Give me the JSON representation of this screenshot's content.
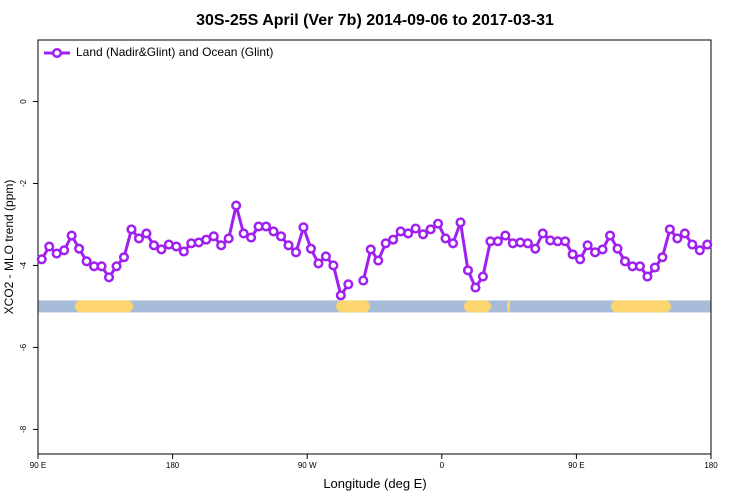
{
  "chart_data": {
    "type": "line",
    "title": "30S-25S April (Ver 7b)   2014-09-06 to 2017-03-31",
    "x_label": "Longitude (deg E)",
    "y_label": "XCO2 - MLO trend (ppm)",
    "xlim": [
      90,
      540
    ],
    "ylim": [
      -8.6,
      1.5
    ],
    "xticks": [
      {
        "value": 90,
        "label": "90 E"
      },
      180,
      {
        "value": 270,
        "label": "90 W"
      },
      {
        "value": 360,
        "label": "0"
      },
      {
        "value": 450,
        "label": "90 E"
      },
      {
        "value": 540,
        "label": "180"
      }
    ],
    "yticks": [
      0,
      -2,
      -4,
      -6,
      -8
    ],
    "legend": "top-left",
    "series": [
      {
        "name": "Land (Nadir&Glint) and Ocean (Glint)",
        "color": "#a020f0",
        "x": [
          92.5,
          97.5,
          102.5,
          107.5,
          112.5,
          117.5,
          122.5,
          127.5,
          132.5,
          137.5,
          142.5,
          147.5,
          152.5,
          157.5,
          162.5,
          167.5,
          172.5,
          177.5,
          182.5,
          187.5,
          192.5,
          197.5,
          202.5,
          207.5,
          212.5,
          217.5,
          222.5,
          227.5,
          232.5,
          237.5,
          242.5,
          247.5,
          252.5,
          257.5,
          262.5,
          267.5,
          272.5,
          277.5,
          282.5,
          287.5,
          292.5,
          297.5,
          302.5,
          307.5,
          312.5,
          317.5,
          322.5,
          327.5,
          332.5,
          337.5,
          342.5,
          347.5,
          352.5,
          357.5,
          362.5,
          367.5,
          372.5,
          377.5,
          382.5,
          387.5,
          392.5,
          397.5,
          402.5,
          407.5,
          412.5,
          417.5,
          422.5,
          427.5,
          432.5,
          437.5,
          442.5,
          447.5,
          452.5,
          457.5,
          462.5,
          467.5,
          472.5,
          477.5,
          482.5,
          487.5,
          492.5,
          497.5,
          502.5,
          507.5,
          512.5,
          517.5,
          522.5,
          527.5,
          532.5,
          537.5
        ],
        "values": [
          -3.85,
          -3.54,
          -3.71,
          -3.63,
          -3.27,
          -3.59,
          -3.9,
          -4.02,
          -4.02,
          -4.29,
          -4.02,
          -3.8,
          -3.12,
          -3.34,
          -3.22,
          -3.51,
          -3.61,
          -3.49,
          -3.54,
          -3.66,
          -3.46,
          -3.44,
          -3.37,
          -3.29,
          -3.51,
          -3.34,
          -2.54,
          -3.22,
          -3.32,
          -3.05,
          -3.05,
          -3.17,
          -3.29,
          -3.51,
          -3.68,
          -3.07,
          -3.59,
          -3.95,
          -3.78,
          -4.0,
          -4.73,
          -4.46,
          null,
          -4.37,
          -3.61,
          -3.88,
          -3.46,
          -3.37,
          -3.17,
          -3.22,
          -3.1,
          -3.24,
          -3.12,
          -2.98,
          -3.34,
          -3.46,
          -2.95,
          -4.12,
          -4.54,
          -4.27,
          -3.41,
          -3.41,
          -3.27,
          -3.46,
          -3.44,
          -3.46,
          -3.59,
          -3.22,
          -3.39,
          -3.41,
          -3.41,
          -3.73,
          -3.85,
          -3.51,
          -3.68,
          -3.61,
          -3.27,
          -3.59,
          -3.9,
          -4.02,
          -4.02,
          -4.27,
          -4.05,
          -3.8,
          -3.12,
          -3.34,
          -3.22,
          -3.49,
          -3.63,
          -3.49
        ]
      }
    ],
    "land_band": {
      "y": -5,
      "ocean_color": "#a6bcd8",
      "land_color": "#fcd56f",
      "land": [
        [
          114.7,
          153.5
        ],
        [
          289.3,
          312
        ],
        [
          374.8,
          392.9
        ],
        [
          403.6,
          405.6
        ],
        [
          473.1,
          513.2
        ]
      ]
    }
  }
}
